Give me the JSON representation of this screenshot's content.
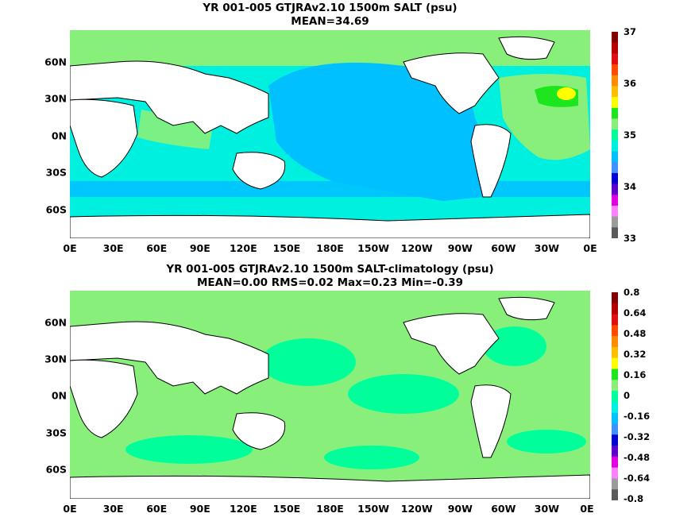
{
  "panel_top": {
    "title": "YR 001-005 GTJRAv2.10 1500m SALT (psu)",
    "subtitle": "MEAN=34.69",
    "colorbar_labels": [
      "37",
      "36",
      "35",
      "34",
      "33"
    ],
    "colorbar_colors": [
      "#7f0000",
      "#b40000",
      "#e01010",
      "#ff4a00",
      "#ff8c00",
      "#ffbf00",
      "#ffff00",
      "#1ee61e",
      "#88f07a",
      "#00ff9a",
      "#00f0e0",
      "#00c0ff",
      "#4090ff",
      "#0000d0",
      "#5a00c8",
      "#e000e0",
      "#ff80ff",
      "#9b9b9b",
      "#5a5a5a"
    ]
  },
  "panel_bottom": {
    "title": "YR 001-005 GTJRAv2.10 1500m SALT-climatology (psu)",
    "subtitle": "MEAN=0.00   RMS=0.02   Max=0.23   Min=-0.39",
    "colorbar_labels": [
      "0.8",
      "0.64",
      "0.48",
      "0.32",
      "0.16",
      "0",
      "-0.16",
      "-0.32",
      "-0.48",
      "-0.64",
      "-0.8"
    ],
    "colorbar_colors": [
      "#7f0000",
      "#b40000",
      "#e01010",
      "#ff4a00",
      "#ff8c00",
      "#ffbf00",
      "#ffff00",
      "#1ee61e",
      "#88f07a",
      "#00ff9a",
      "#00f0e0",
      "#00c0ff",
      "#4090ff",
      "#0000d0",
      "#5a00c8",
      "#e000e0",
      "#ff80ff",
      "#9b9b9b",
      "#5a5a5a"
    ]
  },
  "x_ticks": [
    "0E",
    "30E",
    "60E",
    "90E",
    "120E",
    "150E",
    "180E",
    "150W",
    "120W",
    "90W",
    "60W",
    "30W",
    "0E"
  ],
  "y_ticks": [
    "60N",
    "30N",
    "0N",
    "30S",
    "60S"
  ],
  "colors": {
    "salt_35": "#88f07a",
    "salt_34_8": "#00f0e0",
    "salt_34_6": "#00c0ff",
    "salt_36": "#ffff00",
    "anom_0": "#88f07a",
    "anom_neg": "#00ff9a",
    "land": "#ffffff"
  }
}
